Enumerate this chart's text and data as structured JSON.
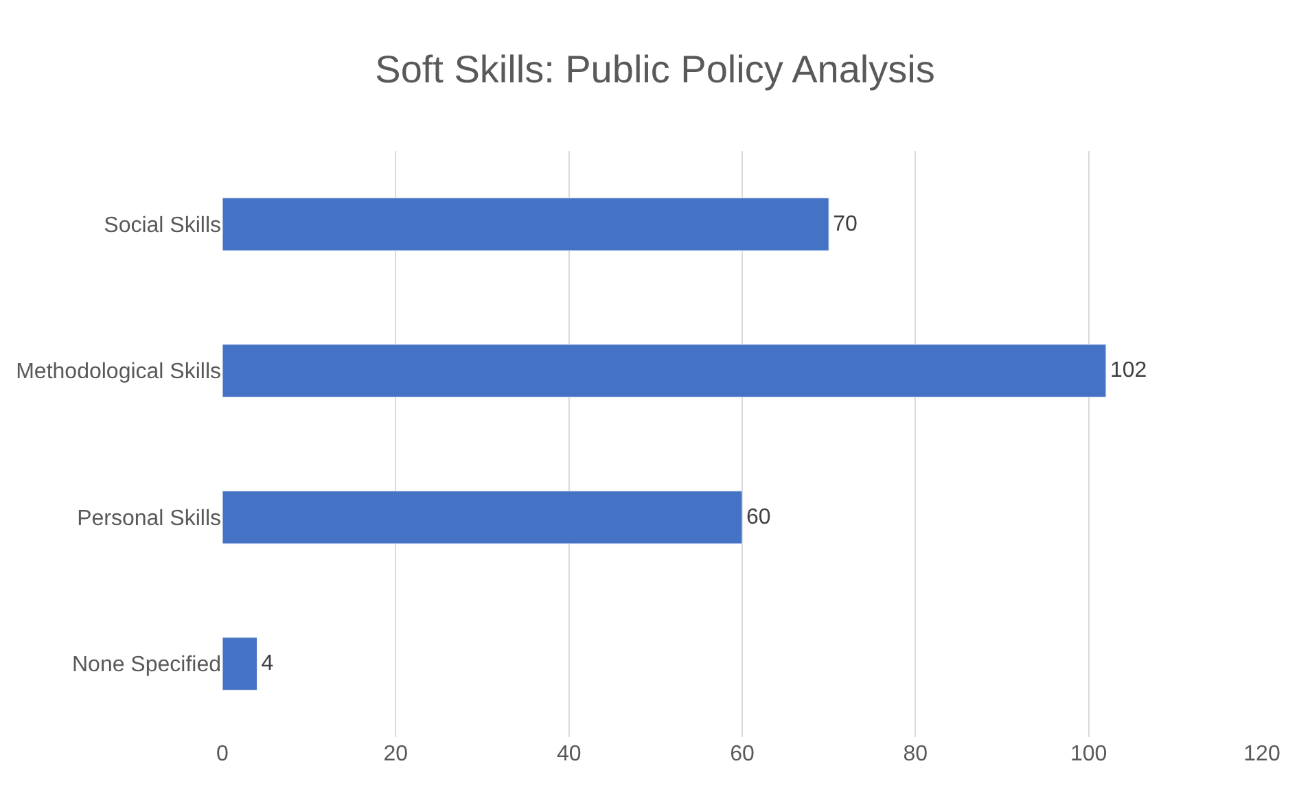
{
  "chart_data": {
    "type": "bar",
    "orientation": "horizontal",
    "title": "Soft Skills: Public Policy Analysis",
    "categories": [
      "Social Skills",
      "Methodological Skills",
      "Personal Skills",
      "None Specified"
    ],
    "values": [
      70,
      102,
      60,
      4
    ],
    "color": "#4472c4",
    "xlim": [
      0,
      120
    ],
    "xticks": [
      0,
      20,
      40,
      60,
      80,
      100,
      120
    ],
    "grid": "x",
    "data_labels": true,
    "legend": false
  }
}
